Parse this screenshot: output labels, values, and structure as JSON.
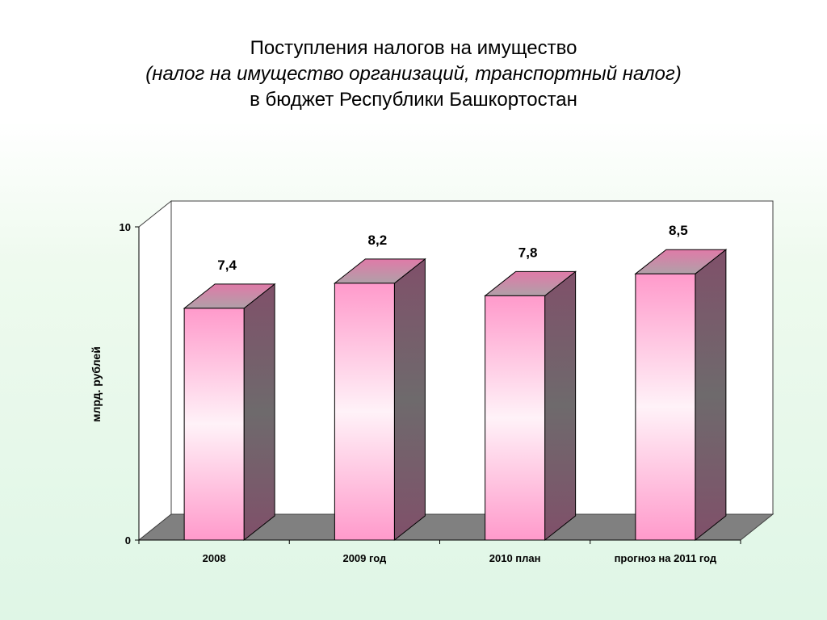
{
  "slide": {
    "title_line1": "Поступления налогов на имущество",
    "title_line2": "(налог на имущество организаций, транспортный налог)",
    "title_line3": "в бюджет Республики Башкортостан"
  },
  "chart_data": {
    "type": "bar",
    "categories": [
      "2008",
      "2009 год",
      "2010 план",
      "прогноз на 2011 год"
    ],
    "values": [
      7.4,
      8.2,
      7.8,
      8.5
    ],
    "value_labels": [
      "7,4",
      "8,2",
      "7,8",
      "8,5"
    ],
    "ylabel": "млрд. рублей",
    "ylim": [
      0,
      10
    ],
    "y_ticks": [
      "0",
      "10"
    ],
    "grid": false,
    "legend": "none",
    "colors": {
      "bar_front_edge": "#ff99cc",
      "bar_front_center": "#fff0f7",
      "bar_side": "#7a5060",
      "bar_top": "#c07890",
      "floor": "#808080",
      "wall": "#ffffff"
    }
  }
}
